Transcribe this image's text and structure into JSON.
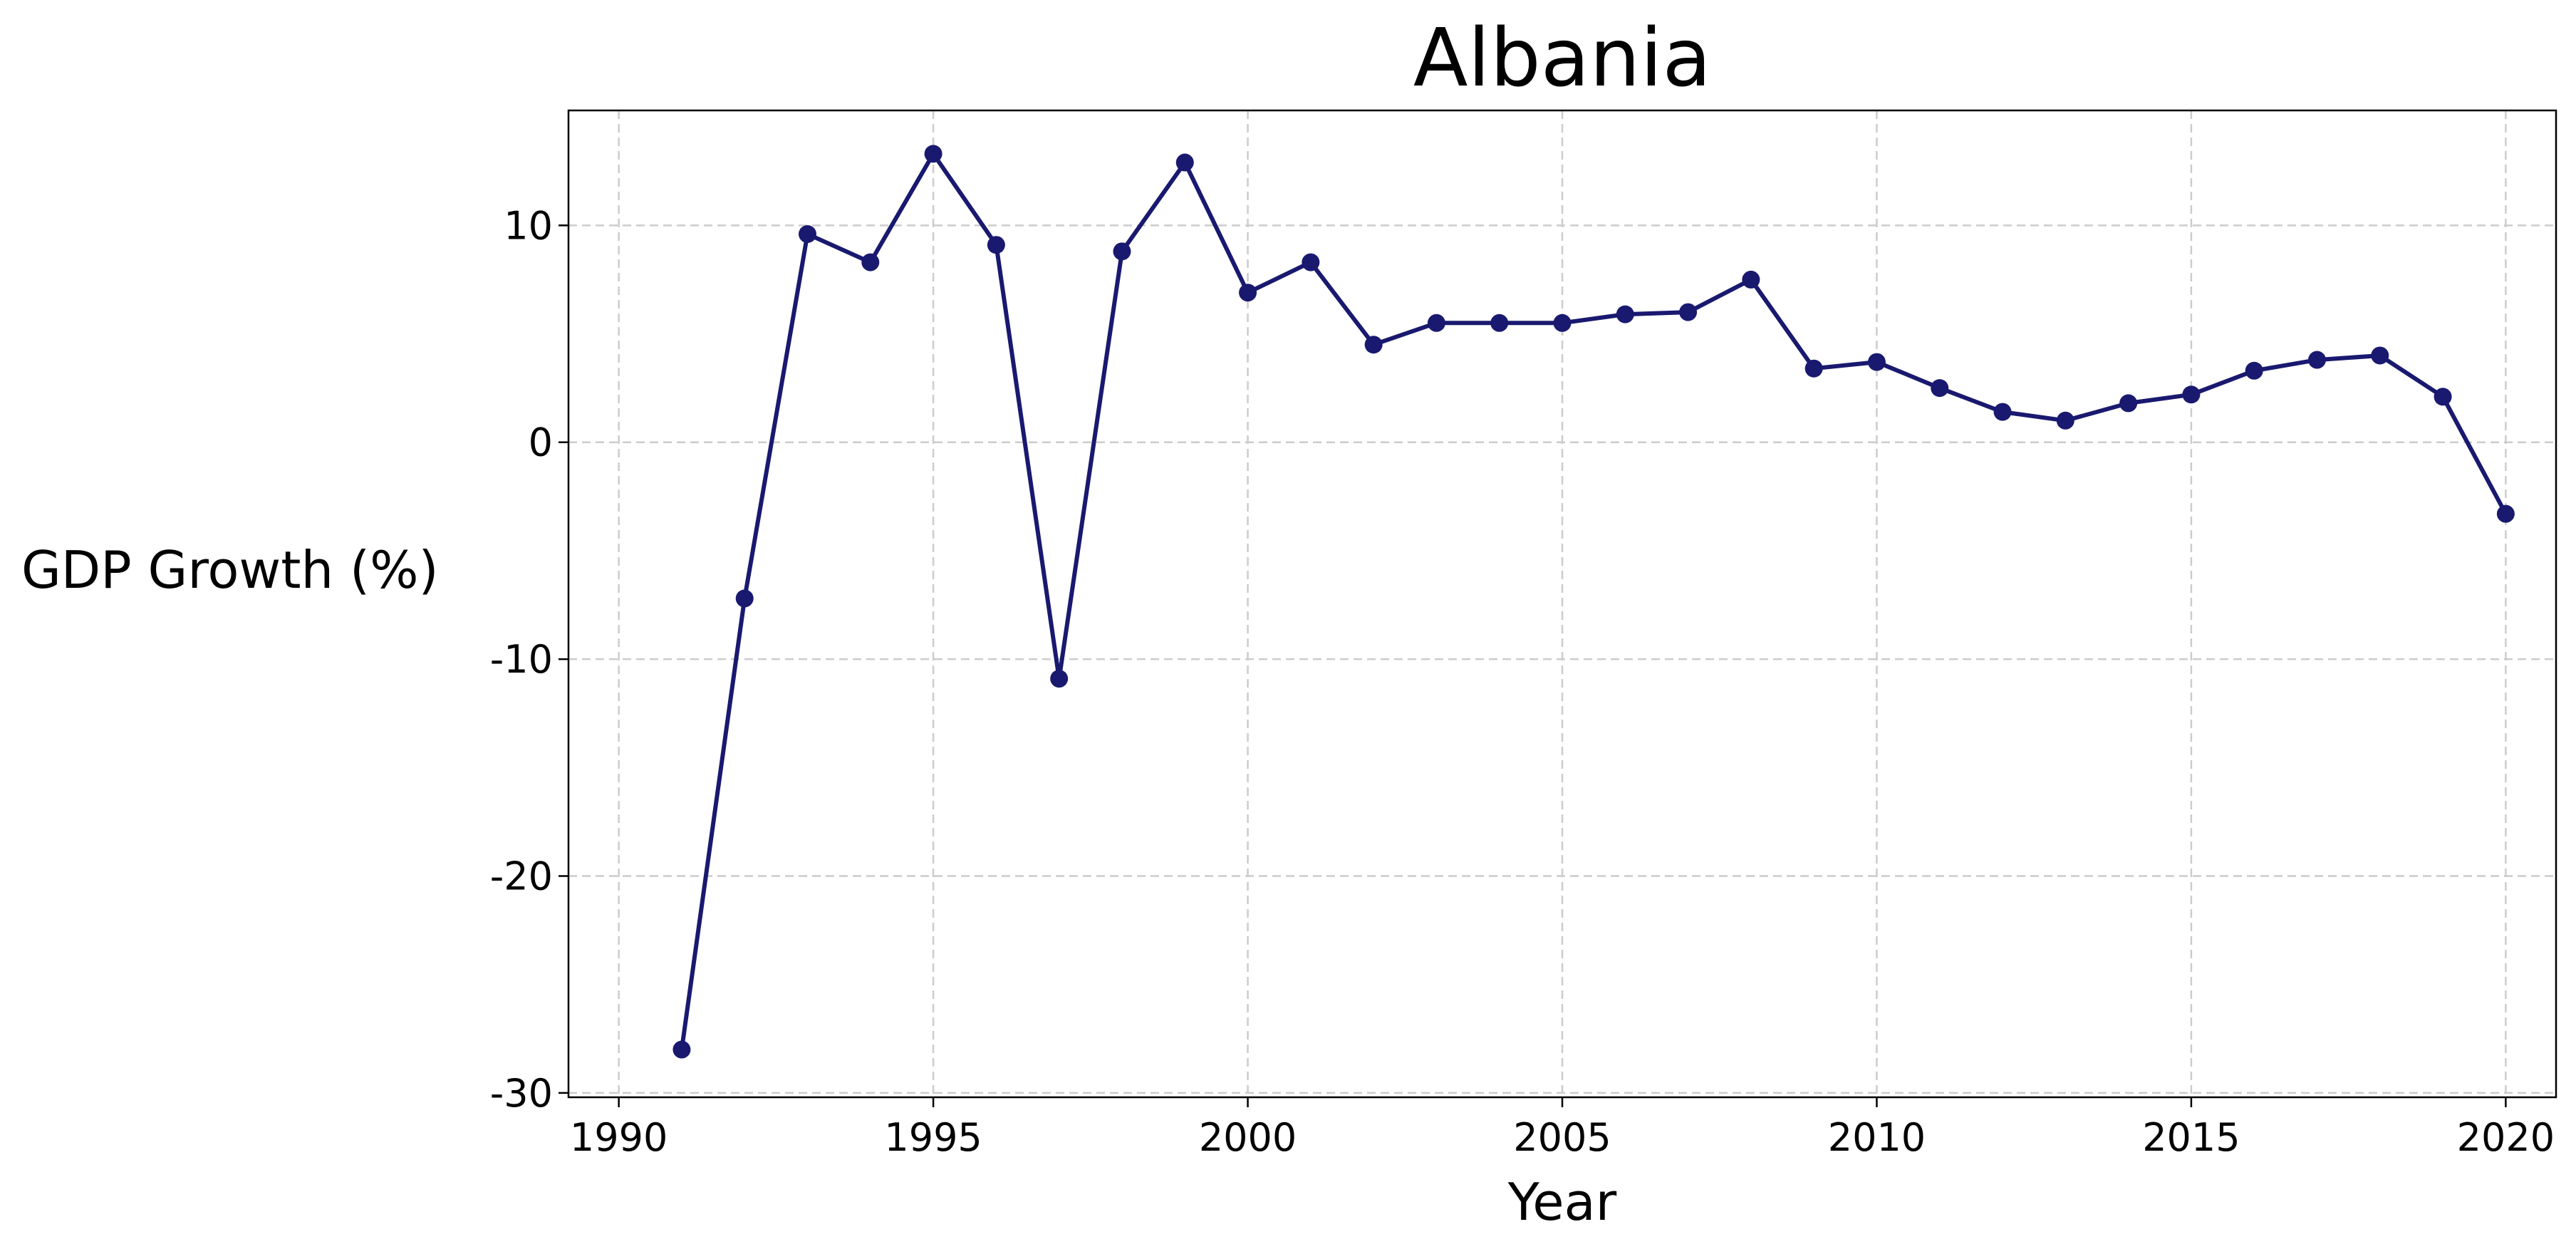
{
  "chart_data": {
    "type": "line",
    "title": "Albania",
    "xlabel": "Year",
    "ylabel": "GDP Growth (%)",
    "xlim": [
      1989.2,
      2020.8
    ],
    "ylim": [
      -30.2,
      15.3
    ],
    "xticks": [
      1990,
      1995,
      2000,
      2005,
      2010,
      2015,
      2020
    ],
    "yticks": [
      -30,
      -20,
      -10,
      0,
      10
    ],
    "grid": true,
    "legend": "none",
    "color": "#191970",
    "series": [
      {
        "x": [
          1991,
          1992,
          1993,
          1994,
          1995,
          1996,
          1997,
          1998,
          1999,
          2000,
          2001,
          2002,
          2003,
          2004,
          2005,
          2006,
          2007,
          2008,
          2009,
          2010,
          2011,
          2012,
          2013,
          2014,
          2015,
          2016,
          2017,
          2018,
          2019,
          2020
        ],
        "values": [
          -28.0,
          -7.2,
          9.6,
          8.3,
          13.3,
          9.1,
          -10.9,
          8.8,
          12.9,
          6.9,
          8.3,
          4.5,
          5.5,
          5.5,
          5.5,
          5.9,
          6.0,
          7.5,
          3.4,
          3.7,
          2.5,
          1.4,
          1.0,
          1.8,
          2.2,
          3.3,
          3.8,
          4.0,
          2.1,
          -3.3
        ]
      }
    ]
  }
}
